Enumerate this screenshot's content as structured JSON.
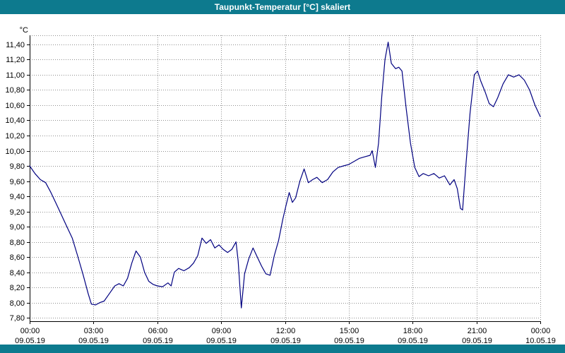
{
  "window": {
    "title": "Taupunkt-Temperatur [°C] skaliert"
  },
  "colors": {
    "titlebar": "#0d7a8e",
    "line": "#000080",
    "grid": "#8f8f8f",
    "axis": "#000000",
    "background": "#ffffff"
  },
  "chart_data": {
    "type": "line",
    "title": "Taupunkt-Temperatur [°C] skaliert",
    "xlabel": "",
    "ylabel": "°C",
    "ylim": [
      7.755,
      11.52
    ],
    "grid": "dotted",
    "legend": "none",
    "line_color": "#000080",
    "y_ticks": [
      {
        "value": 7.8,
        "label": "7,80"
      },
      {
        "value": 8.0,
        "label": "8,00"
      },
      {
        "value": 8.2,
        "label": "8,20"
      },
      {
        "value": 8.4,
        "label": "8,40"
      },
      {
        "value": 8.6,
        "label": "8,60"
      },
      {
        "value": 8.8,
        "label": "8,80"
      },
      {
        "value": 9.0,
        "label": "9,00"
      },
      {
        "value": 9.2,
        "label": "9,20"
      },
      {
        "value": 9.4,
        "label": "9,40"
      },
      {
        "value": 9.6,
        "label": "9,60"
      },
      {
        "value": 9.8,
        "label": "9,80"
      },
      {
        "value": 10.0,
        "label": "10,00"
      },
      {
        "value": 10.2,
        "label": "10,20"
      },
      {
        "value": 10.4,
        "label": "10,40"
      },
      {
        "value": 10.6,
        "label": "10,60"
      },
      {
        "value": 10.8,
        "label": "10,80"
      },
      {
        "value": 11.0,
        "label": "11,00"
      },
      {
        "value": 11.2,
        "label": "11,20"
      },
      {
        "value": 11.4,
        "label": "11,40"
      }
    ],
    "x_ticks": [
      {
        "hour": 0,
        "time": "00:00",
        "date": "09.05.19"
      },
      {
        "hour": 3,
        "time": "03:00",
        "date": "09.05.19"
      },
      {
        "hour": 6,
        "time": "06:00",
        "date": "09.05.19"
      },
      {
        "hour": 9,
        "time": "09:00",
        "date": "09.05.19"
      },
      {
        "hour": 12,
        "time": "12:00",
        "date": "09.05.19"
      },
      {
        "hour": 15,
        "time": "15:00",
        "date": "09.05.19"
      },
      {
        "hour": 18,
        "time": "18:00",
        "date": "09.05.19"
      },
      {
        "hour": 21,
        "time": "21:00",
        "date": "09.05.19"
      },
      {
        "hour": 24,
        "time": "00:00",
        "date": "10.05.19"
      }
    ],
    "series": [
      {
        "name": "Taupunkt-Temperatur",
        "x": [
          0,
          0.25,
          0.5,
          0.75,
          1,
          1.25,
          1.5,
          1.75,
          2,
          2.25,
          2.5,
          2.75,
          2.9,
          3.1,
          3.3,
          3.5,
          3.75,
          4,
          4.2,
          4.4,
          4.6,
          4.8,
          5,
          5.2,
          5.4,
          5.6,
          5.8,
          6,
          6.25,
          6.5,
          6.65,
          6.8,
          7,
          7.25,
          7.5,
          7.7,
          7.9,
          8.1,
          8.3,
          8.5,
          8.7,
          8.9,
          9.1,
          9.3,
          9.5,
          9.7,
          9.8,
          9.95,
          10.1,
          10.3,
          10.5,
          10.7,
          10.9,
          11.1,
          11.3,
          11.5,
          11.7,
          11.9,
          12.05,
          12.2,
          12.35,
          12.5,
          12.7,
          12.9,
          13.1,
          13.3,
          13.5,
          13.75,
          14,
          14.25,
          14.5,
          14.75,
          15,
          15.25,
          15.5,
          15.75,
          16,
          16.1,
          16.25,
          16.4,
          16.55,
          16.7,
          16.85,
          17,
          17.2,
          17.35,
          17.5,
          17.7,
          17.9,
          18.1,
          18.3,
          18.5,
          18.75,
          19,
          19.25,
          19.5,
          19.75,
          19.95,
          20.1,
          20.25,
          20.35,
          20.5,
          20.7,
          20.9,
          21.05,
          21.2,
          21.4,
          21.6,
          21.8,
          22,
          22.25,
          22.5,
          22.75,
          23,
          23.25,
          23.5,
          23.75,
          24
        ],
        "y": [
          9.8,
          9.7,
          9.62,
          9.58,
          9.45,
          9.3,
          9.15,
          9.0,
          8.85,
          8.62,
          8.38,
          8.12,
          7.98,
          7.97,
          8.0,
          8.02,
          8.12,
          8.22,
          8.25,
          8.22,
          8.32,
          8.52,
          8.68,
          8.6,
          8.4,
          8.28,
          8.24,
          8.22,
          8.21,
          8.26,
          8.22,
          8.4,
          8.45,
          8.42,
          8.46,
          8.52,
          8.62,
          8.85,
          8.78,
          8.83,
          8.72,
          8.76,
          8.7,
          8.66,
          8.7,
          8.8,
          8.55,
          7.93,
          8.38,
          8.58,
          8.72,
          8.6,
          8.48,
          8.38,
          8.36,
          8.62,
          8.82,
          9.1,
          9.28,
          9.45,
          9.32,
          9.38,
          9.6,
          9.76,
          9.58,
          9.62,
          9.65,
          9.58,
          9.62,
          9.72,
          9.78,
          9.8,
          9.82,
          9.86,
          9.9,
          9.92,
          9.94,
          10.0,
          9.78,
          10.1,
          10.72,
          11.2,
          11.43,
          11.15,
          11.08,
          11.1,
          11.05,
          10.55,
          10.1,
          9.78,
          9.66,
          9.7,
          9.67,
          9.7,
          9.64,
          9.67,
          9.55,
          9.62,
          9.5,
          9.24,
          9.22,
          9.8,
          10.5,
          11.0,
          11.05,
          10.92,
          10.78,
          10.62,
          10.58,
          10.7,
          10.88,
          11.0,
          10.97,
          11.0,
          10.93,
          10.8,
          10.6,
          10.45
        ]
      }
    ]
  }
}
